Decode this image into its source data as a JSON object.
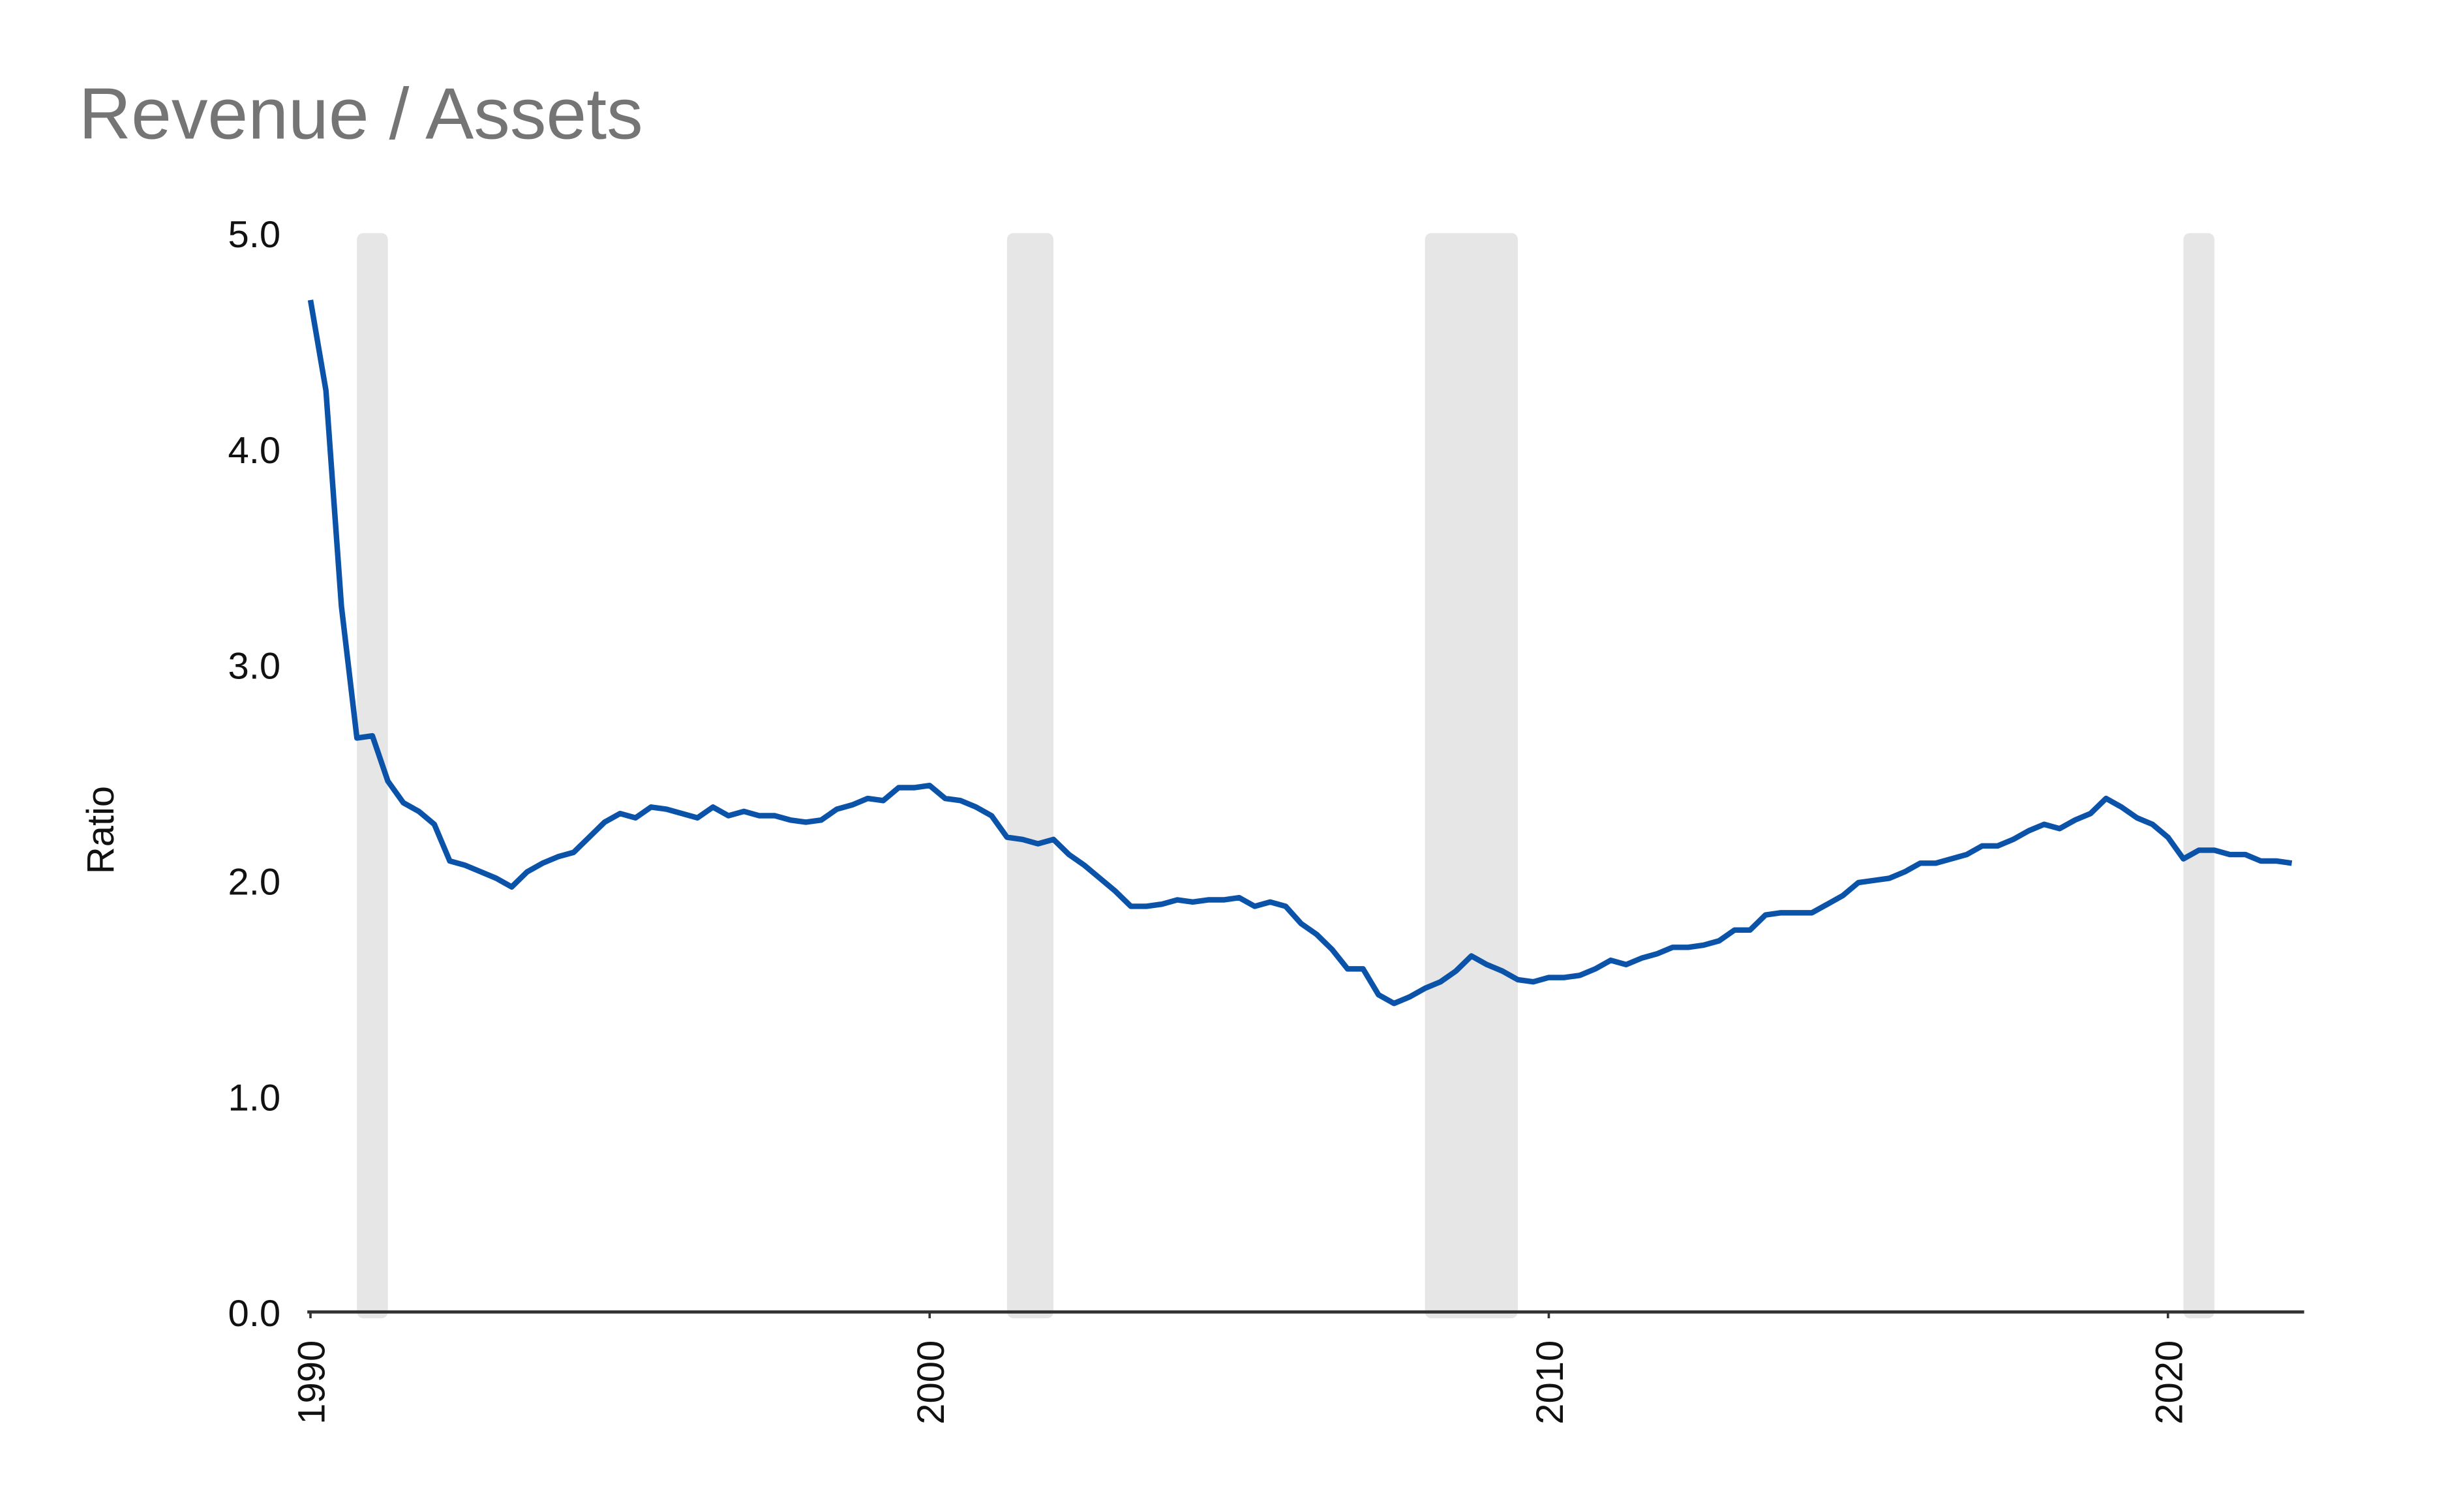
{
  "chart_data": {
    "type": "line",
    "title": "Revenue / Assets",
    "y_label": "Ratio",
    "color": "#0b53a8",
    "recession_color": "#e6e6e6",
    "x": [
      1990,
      1990.25,
      1990.5,
      1990.75,
      1991,
      1991.25,
      1991.5,
      1991.75,
      1992,
      1992.25,
      1992.5,
      1992.75,
      1993,
      1993.25,
      1993.5,
      1993.75,
      1994,
      1994.25,
      1994.5,
      1994.75,
      1995,
      1995.25,
      1995.5,
      1995.75,
      1996,
      1996.25,
      1996.5,
      1996.75,
      1997,
      1997.25,
      1997.5,
      1997.75,
      1998,
      1998.25,
      1998.5,
      1998.75,
      1999,
      1999.25,
      1999.5,
      1999.75,
      2000,
      2000.25,
      2000.5,
      2000.75,
      2001,
      2001.25,
      2001.5,
      2001.75,
      2002,
      2002.25,
      2002.5,
      2002.75,
      2003,
      2003.25,
      2003.5,
      2003.75,
      2004,
      2004.25,
      2004.5,
      2004.75,
      2005,
      2005.25,
      2005.5,
      2005.75,
      2006,
      2006.25,
      2006.5,
      2006.75,
      2007,
      2007.25,
      2007.5,
      2007.75,
      2008,
      2008.25,
      2008.5,
      2008.75,
      2009,
      2009.25,
      2009.5,
      2009.75,
      2010,
      2010.25,
      2010.5,
      2010.75,
      2011,
      2011.25,
      2011.5,
      2011.75,
      2012,
      2012.25,
      2012.5,
      2012.75,
      2013,
      2013.25,
      2013.5,
      2013.75,
      2014,
      2014.25,
      2014.5,
      2014.75,
      2015,
      2015.25,
      2015.5,
      2015.75,
      2016,
      2016.25,
      2016.5,
      2016.75,
      2017,
      2017.25,
      2017.5,
      2017.75,
      2018,
      2018.25,
      2018.5,
      2018.75,
      2019,
      2019.25,
      2019.5,
      2019.75,
      2020,
      2020.25,
      2020.5,
      2020.75,
      2021,
      2021.25,
      2021.5,
      2021.75,
      2022
    ],
    "values": [
      4.69,
      4.27,
      3.27,
      2.66,
      2.67,
      2.46,
      2.36,
      2.32,
      2.26,
      2.09,
      2.07,
      2.04,
      2.01,
      1.97,
      2.04,
      2.08,
      2.11,
      2.13,
      2.2,
      2.27,
      2.31,
      2.29,
      2.34,
      2.33,
      2.31,
      2.29,
      2.34,
      2.3,
      2.32,
      2.3,
      2.3,
      2.28,
      2.27,
      2.28,
      2.33,
      2.35,
      2.38,
      2.37,
      2.43,
      2.43,
      2.44,
      2.38,
      2.37,
      2.34,
      2.3,
      2.2,
      2.19,
      2.17,
      2.19,
      2.12,
      2.07,
      2.01,
      1.95,
      1.88,
      1.88,
      1.89,
      1.91,
      1.9,
      1.91,
      1.91,
      1.92,
      1.88,
      1.9,
      1.88,
      1.8,
      1.75,
      1.68,
      1.59,
      1.59,
      1.47,
      1.43,
      1.46,
      1.5,
      1.53,
      1.58,
      1.65,
      1.61,
      1.58,
      1.54,
      1.53,
      1.55,
      1.55,
      1.56,
      1.59,
      1.63,
      1.61,
      1.64,
      1.66,
      1.69,
      1.69,
      1.7,
      1.72,
      1.77,
      1.77,
      1.84,
      1.85,
      1.85,
      1.85,
      1.89,
      1.93,
      1.99,
      2.0,
      2.01,
      2.04,
      2.08,
      2.08,
      2.1,
      2.12,
      2.16,
      2.16,
      2.19,
      2.23,
      2.26,
      2.24,
      2.28,
      2.31,
      2.38,
      2.34,
      2.29,
      2.26,
      2.2,
      2.1,
      2.14,
      2.14,
      2.12,
      2.12,
      2.09,
      2.09,
      2.08
    ],
    "recessions": [
      {
        "start": 1990.75,
        "end": 1991.25
      },
      {
        "start": 2001.25,
        "end": 2002.0
      },
      {
        "start": 2008.0,
        "end": 2009.5
      },
      {
        "start": 2020.25,
        "end": 2020.75
      }
    ],
    "xlim": [
      1990,
      2022.2
    ],
    "xticks": [
      1990,
      2000,
      2010,
      2020
    ],
    "ylim": [
      0,
      5
    ],
    "yticks": [
      {
        "value": 0,
        "label": "0.0"
      },
      {
        "value": 1,
        "label": "1.0"
      },
      {
        "value": 2,
        "label": "2.0"
      },
      {
        "value": 3,
        "label": "3.0"
      },
      {
        "value": 4,
        "label": "4.0"
      },
      {
        "value": 5,
        "label": "5.0"
      }
    ]
  }
}
